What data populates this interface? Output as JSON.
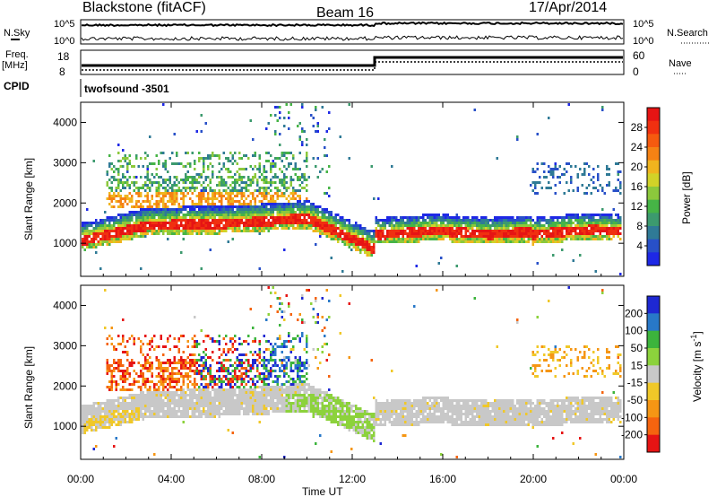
{
  "header": {
    "station": "Blackstone (fitACF)",
    "beam": "Beam 16",
    "date": "17/Apr/2014"
  },
  "status_panels": {
    "nsky_label": "N.Sky",
    "nsearch_label": "N.Search",
    "noise_ticks": [
      "10^5",
      "10^0"
    ],
    "freq_label_line1": "Freq.",
    "freq_label_line2": "[MHz]",
    "freq_ticks": [
      "18",
      "8"
    ],
    "nave_label": "Nave",
    "nave_ticks": [
      "60",
      "0"
    ],
    "cpid_label": "CPID",
    "cpid_value": "twofsound -3501"
  },
  "chart_data": [
    {
      "type": "heatmap",
      "name": "power",
      "ylabel": "Slant Range [km]",
      "xlabel": "",
      "ylim": [
        180,
        4500
      ],
      "yticks": [
        "1000",
        "2000",
        "3000",
        "4000"
      ],
      "xlim": [
        0,
        24
      ],
      "colorbar": {
        "label": "Power [dB]",
        "ticks": [
          "4",
          "8",
          "12",
          "16",
          "20",
          "24",
          "28"
        ],
        "colors": [
          "#1e28e6",
          "#2850c8",
          "#2f7a96",
          "#3c9a6e",
          "#46b446",
          "#8cc83c",
          "#d2d228",
          "#f0b41e",
          "#f58214",
          "#f55a0f",
          "#f03010",
          "#e61414"
        ]
      },
      "features": [
        {
          "desc": "main F-region band",
          "start_km": 1000,
          "end_km": 1800,
          "x_range": [
            0,
            24
          ]
        },
        {
          "desc": "upper scatter 04-08 UT",
          "start_km": 1900,
          "end_km": 3400,
          "x_range": [
            1,
            10
          ]
        },
        {
          "desc": "scattered high range echoes",
          "start_km": 2200,
          "end_km": 4500,
          "x_range": [
            8,
            11
          ]
        }
      ]
    },
    {
      "type": "heatmap",
      "name": "velocity",
      "ylabel": "Slant Range [km]",
      "xlabel": "Time UT",
      "ylim": [
        180,
        4500
      ],
      "yticks": [
        "1000",
        "2000",
        "3000",
        "4000"
      ],
      "xlim": [
        0,
        24
      ],
      "xticks": [
        "00:00",
        "04:00",
        "08:00",
        "12:00",
        "16:00",
        "20:00",
        "00:00"
      ],
      "colorbar": {
        "label": "Velocity [m s",
        "label_sup": "-1",
        "label_end": "]",
        "ticks": [
          "200",
          "100",
          "50",
          "15",
          "-15",
          "-50",
          "-100",
          "-200"
        ],
        "colors": [
          "#1e28d2",
          "#2878c8",
          "#3cb43c",
          "#8cd23c",
          "#c8c8c8",
          "#f0c828",
          "#f59614",
          "#f5640f",
          "#e61414"
        ]
      }
    }
  ]
}
